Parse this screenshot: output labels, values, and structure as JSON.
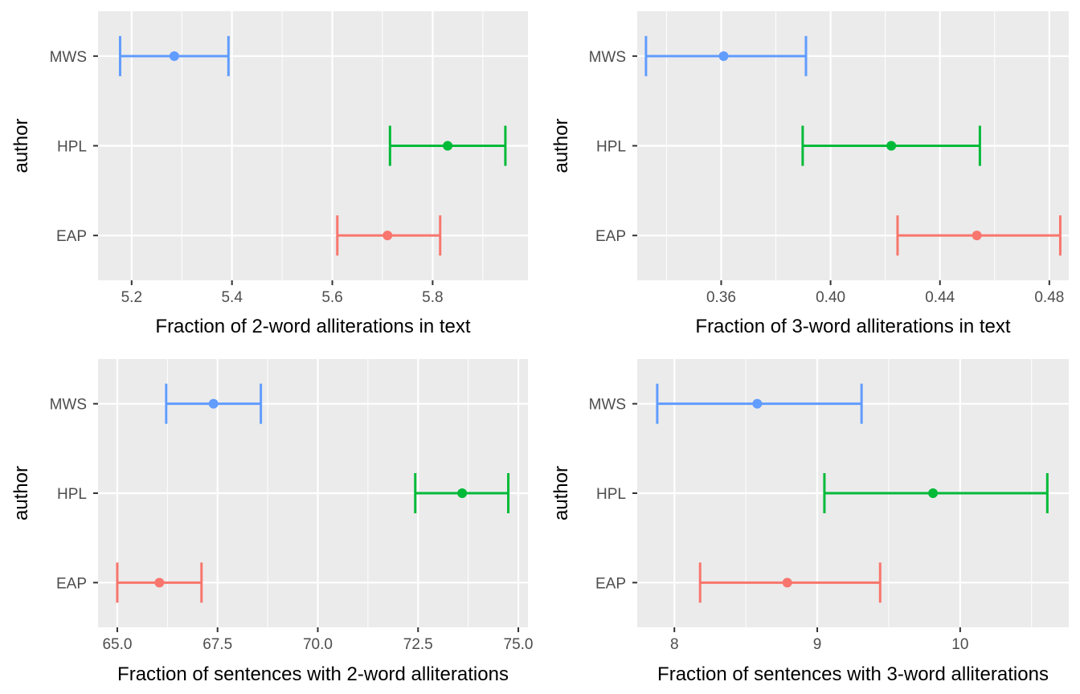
{
  "chart_data": [
    {
      "type": "errorbar",
      "xlabel": "Fraction of 2-word alliterations in text",
      "ylabel": "author",
      "categories": [
        "EAP",
        "HPL",
        "MWS"
      ],
      "colors": {
        "EAP": "#F8766D",
        "HPL": "#00BA38",
        "MWS": "#619CFF"
      },
      "points": [
        {
          "author": "EAP",
          "mean": 5.71,
          "lower": 5.61,
          "upper": 5.815
        },
        {
          "author": "HPL",
          "mean": 5.83,
          "lower": 5.715,
          "upper": 5.945
        },
        {
          "author": "MWS",
          "mean": 5.285,
          "lower": 5.177,
          "upper": 5.393
        }
      ],
      "xlim": [
        5.133,
        5.99
      ],
      "xticks": [
        5.2,
        5.4,
        5.6,
        5.8
      ],
      "xtick_labels": [
        "5.2",
        "5.4",
        "5.6",
        "5.8"
      ],
      "xminor": [
        5.3,
        5.5,
        5.7,
        5.9
      ],
      "grid": true,
      "legend": "none"
    },
    {
      "type": "errorbar",
      "xlabel": "Fraction of 3-word alliterations in text",
      "ylabel": "author",
      "categories": [
        "EAP",
        "HPL",
        "MWS"
      ],
      "colors": {
        "EAP": "#F8766D",
        "HPL": "#00BA38",
        "MWS": "#619CFF"
      },
      "points": [
        {
          "author": "EAP",
          "mean": 0.4535,
          "lower": 0.4245,
          "upper": 0.484
        },
        {
          "author": "HPL",
          "mean": 0.4222,
          "lower": 0.3898,
          "upper": 0.4546
        },
        {
          "author": "MWS",
          "mean": 0.3609,
          "lower": 0.3325,
          "upper": 0.391
        }
      ],
      "xlim": [
        0.3293,
        0.4871
      ],
      "xticks": [
        0.36,
        0.4,
        0.44,
        0.48
      ],
      "xtick_labels": [
        "0.36",
        "0.40",
        "0.44",
        "0.48"
      ],
      "xminor": [
        0.34,
        0.38,
        0.42,
        0.46
      ],
      "grid": true,
      "legend": "none"
    },
    {
      "type": "errorbar",
      "xlabel": "Fraction of sentences with 2-word alliterations",
      "ylabel": "author",
      "categories": [
        "EAP",
        "HPL",
        "MWS"
      ],
      "colors": {
        "EAP": "#F8766D",
        "HPL": "#00BA38",
        "MWS": "#619CFF"
      },
      "points": [
        {
          "author": "EAP",
          "mean": 66.05,
          "lower": 65.0,
          "upper": 67.1
        },
        {
          "author": "HPL",
          "mean": 73.6,
          "lower": 72.43,
          "upper": 74.75
        },
        {
          "author": "MWS",
          "mean": 67.4,
          "lower": 66.22,
          "upper": 68.58
        }
      ],
      "xlim": [
        64.52,
        75.24
      ],
      "xticks": [
        65.0,
        67.5,
        70.0,
        72.5,
        75.0
      ],
      "xtick_labels": [
        "65.0",
        "67.5",
        "70.0",
        "72.5",
        "75.0"
      ],
      "xminor": [
        66.25,
        68.75,
        71.25,
        73.75
      ],
      "grid": true,
      "legend": "none"
    },
    {
      "type": "errorbar",
      "xlabel": "Fraction of sentences with 3-word alliterations",
      "ylabel": "author",
      "categories": [
        "EAP",
        "HPL",
        "MWS"
      ],
      "colors": {
        "EAP": "#F8766D",
        "HPL": "#00BA38",
        "MWS": "#619CFF"
      },
      "points": [
        {
          "author": "EAP",
          "mean": 8.79,
          "lower": 8.18,
          "upper": 9.44
        },
        {
          "author": "HPL",
          "mean": 9.81,
          "lower": 9.05,
          "upper": 10.61
        },
        {
          "author": "MWS",
          "mean": 8.58,
          "lower": 7.88,
          "upper": 9.31
        }
      ],
      "xlim": [
        7.74,
        10.76
      ],
      "xticks": [
        8,
        9,
        10
      ],
      "xtick_labels": [
        "8",
        "9",
        "10"
      ],
      "xminor": [
        8.5,
        9.5,
        10.5
      ],
      "grid": true,
      "legend": "none"
    }
  ]
}
